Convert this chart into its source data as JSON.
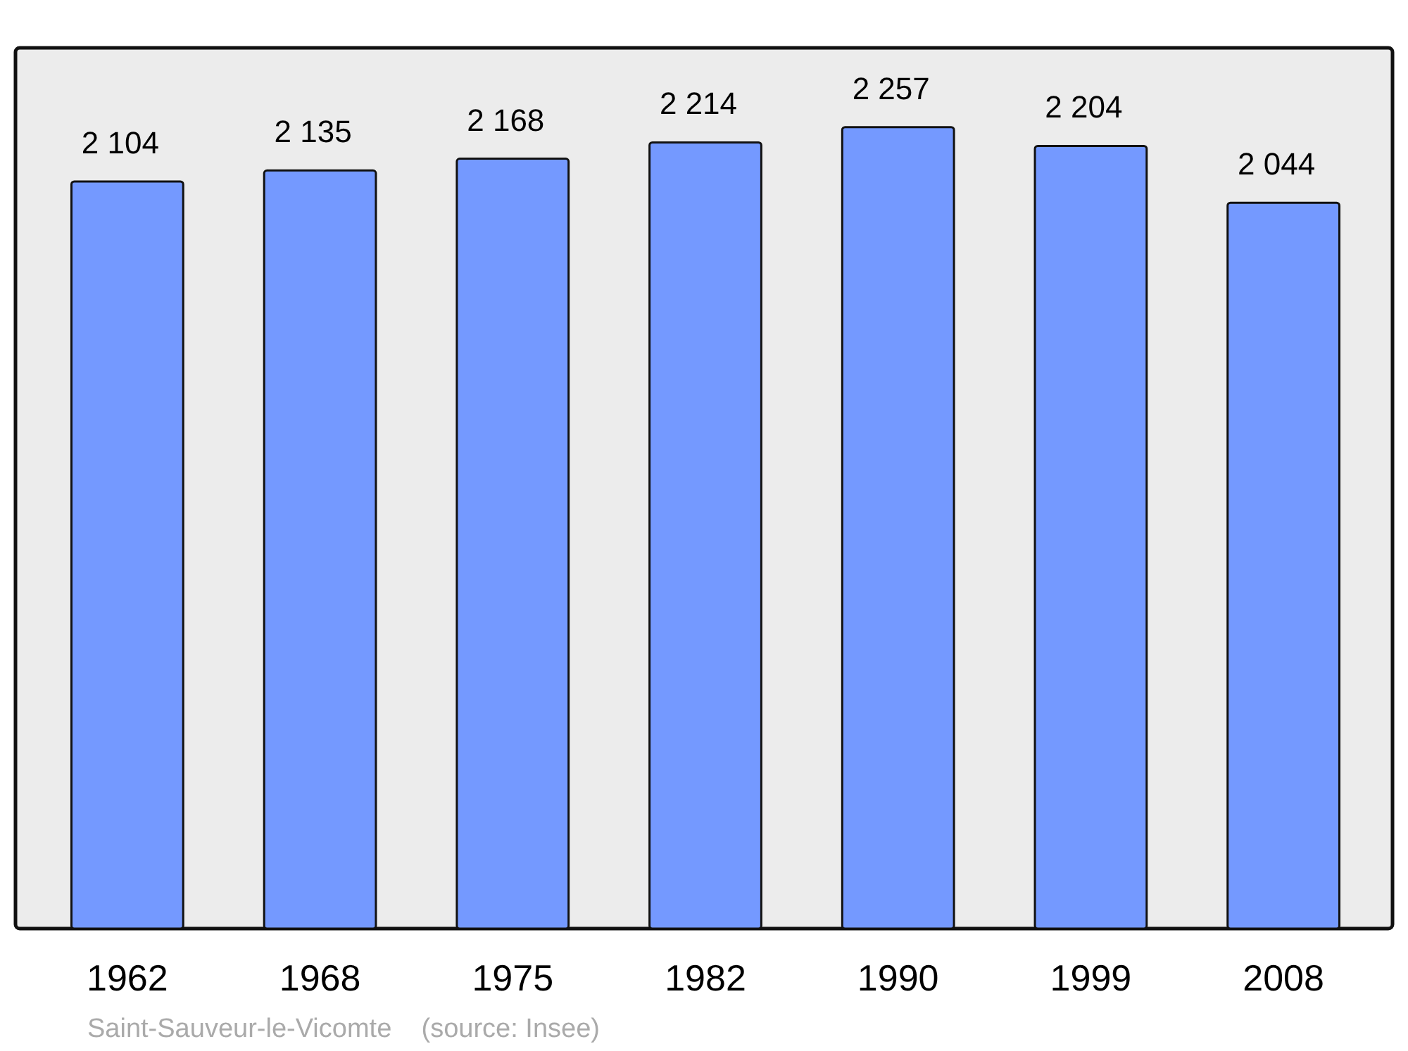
{
  "chart_data": {
    "type": "bar",
    "categories": [
      "1962",
      "1968",
      "1975",
      "1982",
      "1990",
      "1999",
      "2008"
    ],
    "values": [
      2104,
      2135,
      2168,
      2214,
      2257,
      2204,
      2044
    ],
    "value_labels": [
      "2 104",
      "2 135",
      "2 168",
      "2 214",
      "2 257",
      "2 204",
      "2 044"
    ],
    "color": "#7499ff",
    "annotations": [
      "Saint-Sauveur-le-Vicomte    (source: Insee)"
    ]
  }
}
